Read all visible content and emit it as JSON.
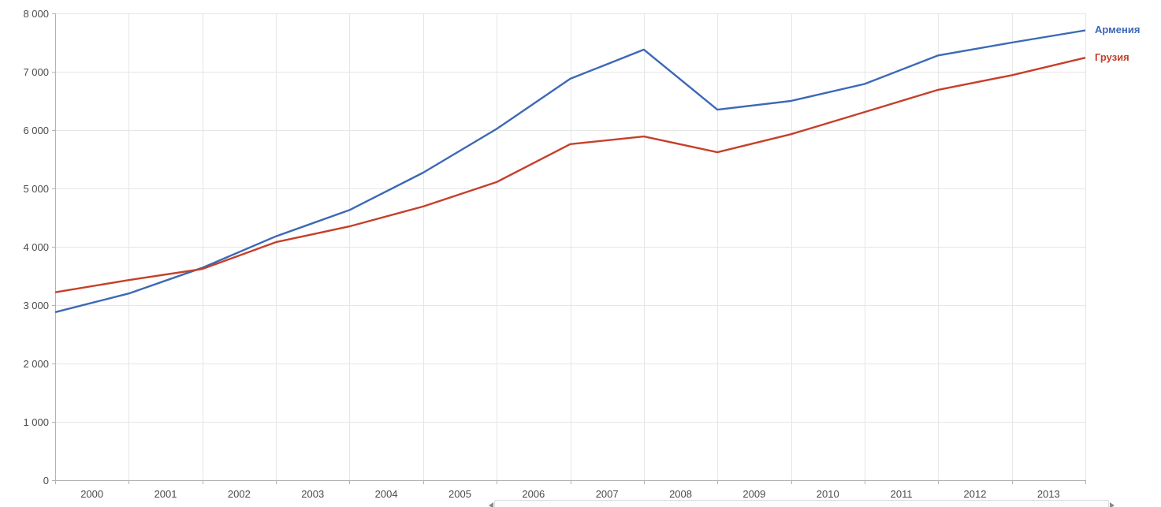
{
  "chart_data": {
    "type": "line",
    "title": "",
    "xlabel": "",
    "ylabel": "",
    "grid": true,
    "legend_position": "right",
    "ylim": [
      0,
      8000
    ],
    "y_tick_step": 1000,
    "y_tick_labels": [
      "0",
      "1 000",
      "2 000",
      "3 000",
      "4 000",
      "5 000",
      "6 000",
      "7 000",
      "8 000"
    ],
    "x": [
      2000,
      2001,
      2002,
      2003,
      2004,
      2005,
      2006,
      2007,
      2008,
      2009,
      2010,
      2011,
      2012,
      2013,
      2014
    ],
    "x_tick_labels": [
      "2000",
      "2001",
      "2002",
      "2003",
      "2004",
      "2005",
      "2006",
      "2007",
      "2008",
      "2009",
      "2010",
      "2011",
      "2012",
      "2013"
    ],
    "series": [
      {
        "name": "Армения",
        "color": "#3C68B6",
        "values": [
          2880,
          3200,
          3640,
          4180,
          4630,
          5270,
          6020,
          6880,
          7380,
          6350,
          6500,
          6790,
          7280,
          7500,
          7710
        ]
      },
      {
        "name": "Грузия",
        "color": "#C5402B",
        "values": [
          3220,
          3430,
          3620,
          4080,
          4350,
          4690,
          5110,
          5760,
          5890,
          5620,
          5930,
          6310,
          6690,
          6940,
          7240
        ]
      }
    ]
  },
  "colors": {
    "background": "#ffffff",
    "grid": "#e6e6e6",
    "axis": "#b3b3b3",
    "label": "#4a4a4a"
  }
}
